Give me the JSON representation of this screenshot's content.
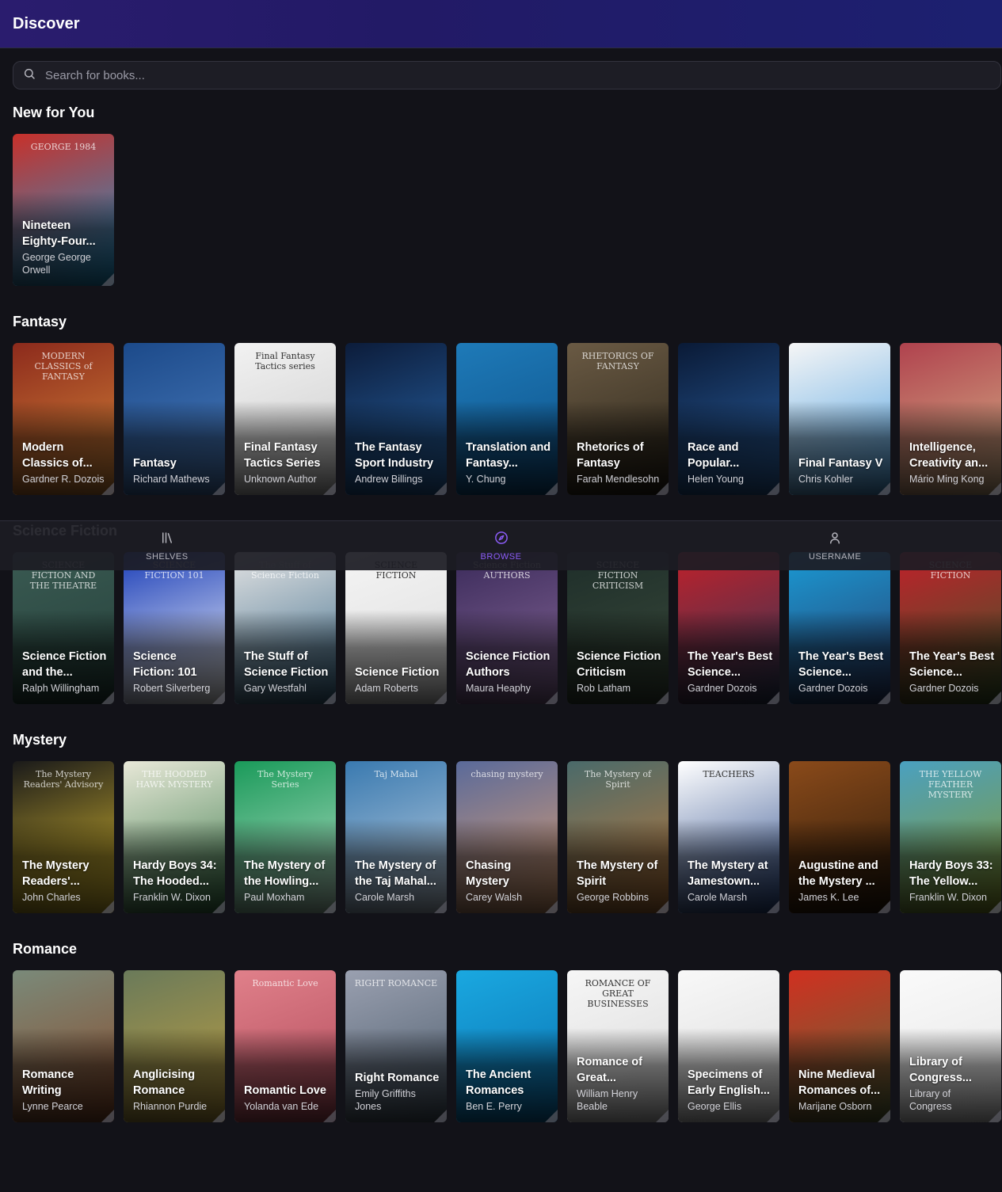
{
  "header": {
    "title": "Discover"
  },
  "search": {
    "placeholder": "Search for books..."
  },
  "sections": [
    {
      "title": "New for You",
      "books": [
        {
          "title": "Nineteen Eighty-Four...",
          "author": "George George Orwell",
          "cover": "#c8302a",
          "cover2": "#1a9ad4",
          "deco": "GEORGE 1984"
        }
      ]
    },
    {
      "title": "Fantasy",
      "books": [
        {
          "title": "Modern Classics of...",
          "author": "Gardner R. Dozois",
          "cover": "#8c2a1c",
          "cover2": "#d98a3a",
          "deco": "MODERN CLASSICS of FANTASY"
        },
        {
          "title": "Fantasy",
          "author": "Richard Mathews",
          "cover": "#1c4a8a",
          "cover2": "#4d7fc0",
          "deco": ""
        },
        {
          "title": "Final Fantasy Tactics Series",
          "author": "Unknown Author",
          "cover": "#f2f2f2",
          "cover2": "#c9c9c9",
          "deco": "Final Fantasy Tactics series"
        },
        {
          "title": "The Fantasy Sport Industry",
          "author": "Andrew Billings",
          "cover": "#0c1c3a",
          "cover2": "#2a6ab0",
          "deco": ""
        },
        {
          "title": "Translation and Fantasy...",
          "author": "Y. Chung",
          "cover": "#1e7ab8",
          "cover2": "#0d4f86",
          "deco": ""
        },
        {
          "title": "Rhetorics of Fantasy",
          "author": "Farah Mendlesohn",
          "cover": "#6a5a44",
          "cover2": "#2a2418",
          "deco": "RHETORICS OF FANTASY"
        },
        {
          "title": "Race and Popular...",
          "author": "Helen Young",
          "cover": "#0a1a36",
          "cover2": "#2c64a8",
          "deco": ""
        },
        {
          "title": "Final Fantasy V",
          "author": "Chris Kohler",
          "cover": "#f6f6f6",
          "cover2": "#4a9ee0",
          "deco": ""
        },
        {
          "title": "Intelligence, Creativity an...",
          "author": "Mário Ming Kong",
          "cover": "#b0424e",
          "cover2": "#d7b78a",
          "deco": ""
        }
      ]
    },
    {
      "title": "Science Fiction",
      "books": [
        {
          "title": "Science Fiction and the...",
          "author": "Ralph Willingham",
          "cover": "#3a5a52",
          "cover2": "#24403a",
          "deco": "SCIENCE FICTION AND THE THEATRE"
        },
        {
          "title": "Science Fiction: 101",
          "author": "Robert Silverberg",
          "cover": "#1c3fb8",
          "cover2": "#ffffff",
          "deco": "SCIENCE FICTION 101"
        },
        {
          "title": "The Stuff of Science Fiction",
          "author": "Gary Westfahl",
          "cover": "#e2e2e2",
          "cover2": "#3a6a8a",
          "deco": "The Stuff of Science Fiction"
        },
        {
          "title": "Science Fiction",
          "author": "Adam Roberts",
          "cover": "#f4f4f4",
          "cover2": "#dcdcdc",
          "deco": "SCIENCE FICTION"
        },
        {
          "title": "Science Fiction Authors",
          "author": "Maura Heaphy",
          "cover": "#3a2a5a",
          "cover2": "#8a6a9a",
          "deco": "Science Fiction AUTHORS"
        },
        {
          "title": "Science Fiction Criticism",
          "author": "Rob Latham",
          "cover": "#1e2e2a",
          "cover2": "#3a4a3a",
          "deco": "SCIENCE FICTION CRITICISM"
        },
        {
          "title": "The Year's Best Science...",
          "author": "Gardner Dozois",
          "cover": "#c0202a",
          "cover2": "#2a3a5a",
          "deco": ""
        },
        {
          "title": "The Year's Best Science...",
          "author": "Gardner Dozois",
          "cover": "#1a9ad4",
          "cover2": "#2a3a6a",
          "deco": ""
        },
        {
          "title": "The Year's Best Science...",
          "author": "Gardner Dozois",
          "cover": "#c0202a",
          "cover2": "#3a5a2a",
          "deco": "SCIENCE FICTION"
        }
      ]
    },
    {
      "title": "Mystery",
      "books": [
        {
          "title": "The Mystery Readers'...",
          "author": "John Charles",
          "cover": "#1a1a1a",
          "cover2": "#e0c030",
          "deco": "The Mystery Readers' Advisory"
        },
        {
          "title": "Hardy Boys 34: The Hooded...",
          "author": "Franklin W. Dixon",
          "cover": "#e8e8d8",
          "cover2": "#3a7a4a",
          "deco": "THE HOODED HAWK MYSTERY"
        },
        {
          "title": "The Mystery of the Howling...",
          "author": "Paul Moxham",
          "cover": "#1a9a5a",
          "cover2": "#b8e0c8",
          "deco": "The Mystery Series"
        },
        {
          "title": "The Mystery of the Taj Mahal...",
          "author": "Carole Marsh",
          "cover": "#3a7ab0",
          "cover2": "#c0d0e0",
          "deco": "Taj Mahal"
        },
        {
          "title": "Chasing Mystery",
          "author": "Carey Walsh",
          "cover": "#5a6a9a",
          "cover2": "#e0a070",
          "deco": "chasing mystery"
        },
        {
          "title": "The Mystery of Spirit",
          "author": "George Robbins",
          "cover": "#4a6a6a",
          "cover2": "#c07a3a",
          "deco": "The Mystery of Spirit"
        },
        {
          "title": "The Mystery at Jamestown...",
          "author": "Carole Marsh",
          "cover": "#ffffff",
          "cover2": "#2a4a8a",
          "deco": "TEACHERS"
        },
        {
          "title": "Augustine and the Mystery ...",
          "author": "James K. Lee",
          "cover": "#8a4a1a",
          "cover2": "#2a1a0a",
          "deco": ""
        },
        {
          "title": "Hardy Boys 33: The Yellow...",
          "author": "Franklin W. Dixon",
          "cover": "#4aa0c0",
          "cover2": "#8a9a2a",
          "deco": "THE YELLOW FEATHER MYSTERY"
        }
      ]
    },
    {
      "title": "Romance",
      "books": [
        {
          "title": "Romance Writing",
          "author": "Lynne Pearce",
          "cover": "#7a8a7a",
          "cover2": "#8a4a2a",
          "deco": ""
        },
        {
          "title": "Anglicising Romance",
          "author": "Rhiannon Purdie",
          "cover": "#6a7a5a",
          "cover2": "#c0a040",
          "deco": ""
        },
        {
          "title": "Romantic Love",
          "author": "Yolanda van Ede",
          "cover": "#e0808a",
          "cover2": "#b04a5a",
          "deco": "Romantic Love"
        },
        {
          "title": "Right Romance",
          "author": "Emily Griffiths Jones",
          "cover": "#9aa0b0",
          "cover2": "#4a5a6a",
          "deco": "RIGHT ROMANCE"
        },
        {
          "title": "The Ancient Romances",
          "author": "Ben E. Perry",
          "cover": "#1aa8e0",
          "cover2": "#0a70b0",
          "deco": ""
        },
        {
          "title": "Romance of Great...",
          "author": "William Henry Beable",
          "cover": "#f6f6f6",
          "cover2": "#d8d8d8",
          "deco": "ROMANCE OF GREAT BUSINESSES"
        },
        {
          "title": "Specimens of Early English...",
          "author": "George Ellis",
          "cover": "#f8f8f8",
          "cover2": "#dadada",
          "deco": ""
        },
        {
          "title": "Nine Medieval Romances of...",
          "author": "Marijane Osborn",
          "cover": "#d03020",
          "cover2": "#5a6a3a",
          "deco": ""
        },
        {
          "title": "Library of Congress...",
          "author": "Library of Congress",
          "cover": "#fafafa",
          "cover2": "#e4e4e4",
          "deco": ""
        }
      ]
    }
  ],
  "nav": {
    "items": [
      {
        "label": "SHELVES",
        "icon": "library-icon"
      },
      {
        "label": "BROWSE",
        "icon": "compass-icon",
        "active": true
      },
      {
        "label": "USERNAME",
        "icon": "user-icon"
      }
    ],
    "accent": "#8b5cf6"
  }
}
